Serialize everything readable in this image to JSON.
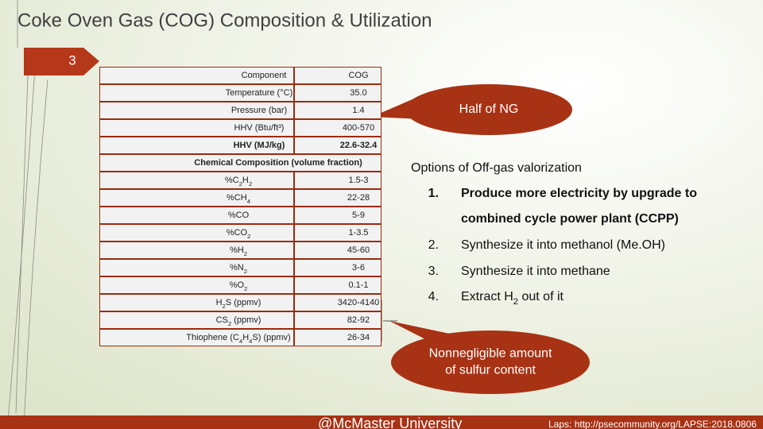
{
  "header": {
    "title": "Coke Oven Gas (COG) Composition & Utilization",
    "slide_number": "3"
  },
  "table": {
    "header": [
      "Component",
      "COG"
    ],
    "properties": [
      [
        [
          "Temperature (°C)"
        ],
        [
          "35.0"
        ]
      ],
      [
        [
          "Pressure (bar)"
        ],
        [
          "1.4"
        ]
      ],
      [
        [
          "HHV (Btu/ft³)"
        ],
        [
          "400-570"
        ]
      ],
      [
        [
          "HHV (MJ/kg)"
        ],
        [
          "22.6-32.4"
        ]
      ]
    ],
    "section_title": "Chemical Composition (volume fraction)",
    "composition": [
      [
        [
          "%C",
          "2",
          "H",
          "2"
        ],
        [
          "1.5-3"
        ]
      ],
      [
        [
          "%CH",
          "4"
        ],
        [
          "22-28"
        ]
      ],
      [
        [
          "%CO"
        ],
        [
          "5-9"
        ]
      ],
      [
        [
          "%CO",
          "2"
        ],
        [
          "1-3.5"
        ]
      ],
      [
        [
          "%H",
          "2"
        ],
        [
          "45-60"
        ]
      ],
      [
        [
          "%N",
          "2"
        ],
        [
          "3-6"
        ]
      ],
      [
        [
          "%O",
          "2"
        ],
        [
          "0.1-1"
        ]
      ],
      [
        [
          "H",
          "2",
          "S (ppmv)"
        ],
        [
          "3420-4140"
        ]
      ],
      [
        [
          "CS",
          "2",
          " (ppmv)"
        ],
        [
          "82-92"
        ]
      ],
      [
        [
          "Thiophene (C",
          "4",
          "H",
          "4",
          "S) (ppmv)"
        ],
        [
          "26-34"
        ]
      ]
    ]
  },
  "callouts": {
    "natural_gas": [
      "Half of NG"
    ],
    "sulfur": [
      "Nonnegligible amount",
      "of sulfur content"
    ]
  },
  "options": {
    "title": "Options of Off-gas valorization",
    "items": [
      {
        "number": "1.",
        "lines": [
          [
            "Produce more electricity by upgrade to"
          ],
          [
            "combined cycle power plant (CCPP)"
          ]
        ]
      },
      {
        "number": "2.",
        "lines": [
          [
            "Synthesize it into methanol (Me.OH)"
          ]
        ]
      },
      {
        "number": "3.",
        "lines": [
          [
            "Synthesize it into methane"
          ]
        ]
      },
      {
        "number": "4.",
        "lines": [
          [
            "Extract H",
            "2",
            " out of it"
          ]
        ]
      }
    ]
  },
  "footer": {
    "left": "@McMaster University",
    "right": "Laps: http://psecommunity.org/LAPSE:2018.0806"
  }
}
